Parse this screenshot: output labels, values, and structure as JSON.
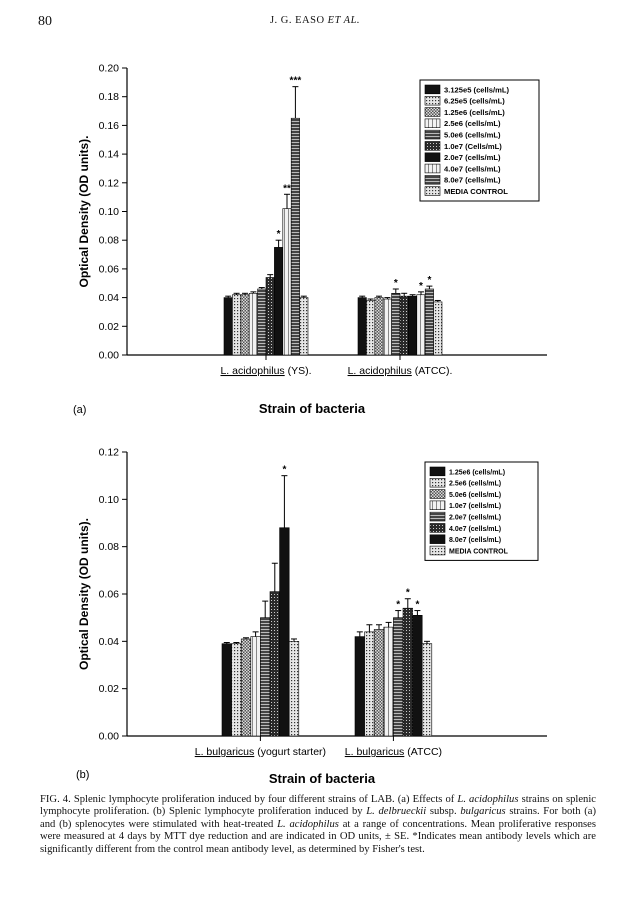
{
  "header": {
    "page_number": "80",
    "authors": "J. G. EASO ",
    "authors_etal": "ET AL."
  },
  "chart_data": [
    {
      "panel": "(a)",
      "type": "bar",
      "ylabel": "Optical Density (OD units).",
      "xlabel": "Strain of bacteria",
      "ylim": [
        0,
        0.2
      ],
      "yticks": [
        "0.00",
        "0.02",
        "0.04",
        "0.06",
        "0.08",
        "0.10",
        "0.12",
        "0.14",
        "0.16",
        "0.18",
        "0.20"
      ],
      "categories": [
        "L. acidophilus (YS).",
        "L. acidophilus (ATCC)."
      ],
      "category_parts": [
        {
          "name": "L. acidophilus",
          "suffix": " (YS)."
        },
        {
          "name": "L. acidophilus",
          "suffix": " (ATCC)."
        }
      ],
      "legend_position": "top-right",
      "series": [
        {
          "name": "3.125e5 (cells/mL)",
          "values": [
            0.04,
            0.04
          ],
          "errors": [
            0.001,
            0.001
          ],
          "sig": [
            "",
            ""
          ],
          "fill": "#111111"
        },
        {
          "name": "6.25e5 (cells/mL)",
          "values": [
            0.042,
            0.038
          ],
          "errors": [
            0.001,
            0.001
          ],
          "sig": [
            "",
            ""
          ],
          "fill": "pat-dots"
        },
        {
          "name": "1.25e6 (cells/mL)",
          "values": [
            0.042,
            0.04
          ],
          "errors": [
            0.001,
            0.001
          ],
          "sig": [
            "",
            ""
          ],
          "fill": "pat-checker"
        },
        {
          "name": "2.5e6 (cells/mL)",
          "values": [
            0.043,
            0.039
          ],
          "errors": [
            0.001,
            0.001
          ],
          "sig": [
            "",
            ""
          ],
          "fill": "pat-light"
        },
        {
          "name": "5.0e6 (cells/mL)",
          "values": [
            0.046,
            0.043
          ],
          "errors": [
            0.001,
            0.003
          ],
          "sig": [
            "",
            "*"
          ],
          "fill": "pat-hatch"
        },
        {
          "name": "1.0e7 (Cells/mL)",
          "values": [
            0.054,
            0.041
          ],
          "errors": [
            0.002,
            0.002
          ],
          "sig": [
            "",
            ""
          ],
          "fill": "pat-cross"
        },
        {
          "name": "2.0e7 (cells/mL)",
          "values": [
            0.075,
            0.041
          ],
          "errors": [
            0.005,
            0.001
          ],
          "sig": [
            "*",
            ""
          ],
          "fill": "#111111"
        },
        {
          "name": "4.0e7 (cells/mL)",
          "values": [
            0.102,
            0.042
          ],
          "errors": [
            0.01,
            0.002
          ],
          "sig": [
            "**",
            "*"
          ],
          "fill": "pat-light"
        },
        {
          "name": "8.0e7 (cells/mL)",
          "values": [
            0.165,
            0.046
          ],
          "errors": [
            0.022,
            0.002
          ],
          "sig": [
            "***",
            "*"
          ],
          "fill": "pat-hatch"
        },
        {
          "name": "MEDIA CONTROL",
          "values": [
            0.04,
            0.037
          ],
          "errors": [
            0.001,
            0.001
          ],
          "sig": [
            "",
            ""
          ],
          "fill": "pat-dots"
        }
      ]
    },
    {
      "panel": "(b)",
      "type": "bar",
      "ylabel": "Optical Density (OD units).",
      "xlabel": "Strain of bacteria",
      "ylim": [
        0,
        0.12
      ],
      "yticks": [
        "0.00",
        "0.02",
        "0.04",
        "0.06",
        "0.08",
        "0.10",
        "0.12"
      ],
      "categories": [
        "L. bulgaricus (yogurt starter)",
        "L. bulgaricus (ATCC)"
      ],
      "category_parts": [
        {
          "name": "L. bulgaricus",
          "suffix": " (yogurt starter)"
        },
        {
          "name": "L. bulgaricus",
          "suffix": " (ATCC)"
        }
      ],
      "legend_position": "top-right",
      "series": [
        {
          "name": "1.25e6 (cells/mL)",
          "values": [
            0.039,
            0.042
          ],
          "errors": [
            0.0005,
            0.002
          ],
          "sig": [
            "",
            ""
          ],
          "fill": "#111111"
        },
        {
          "name": "2.5e6 (cells/mL)",
          "values": [
            0.039,
            0.044
          ],
          "errors": [
            0.0005,
            0.003
          ],
          "sig": [
            "",
            ""
          ],
          "fill": "pat-dots"
        },
        {
          "name": "5.0e6 (cells/mL)",
          "values": [
            0.041,
            0.045
          ],
          "errors": [
            0.0005,
            0.002
          ],
          "sig": [
            "",
            ""
          ],
          "fill": "pat-checker"
        },
        {
          "name": "1.0e7 (cells/mL)",
          "values": [
            0.042,
            0.046
          ],
          "errors": [
            0.002,
            0.002
          ],
          "sig": [
            "",
            ""
          ],
          "fill": "pat-light"
        },
        {
          "name": "2.0e7 (cells/mL)",
          "values": [
            0.05,
            0.05
          ],
          "errors": [
            0.007,
            0.003
          ],
          "sig": [
            "",
            "*"
          ],
          "fill": "pat-hatch"
        },
        {
          "name": "4.0e7 (cells/mL)",
          "values": [
            0.061,
            0.054
          ],
          "errors": [
            0.012,
            0.004
          ],
          "sig": [
            "",
            "*"
          ],
          "fill": "pat-cross"
        },
        {
          "name": "8.0e7 (cells/mL)",
          "values": [
            0.088,
            0.051
          ],
          "errors": [
            0.022,
            0.002
          ],
          "sig": [
            "*",
            "*"
          ],
          "fill": "#111111"
        },
        {
          "name": "MEDIA CONTROL",
          "values": [
            0.04,
            0.039
          ],
          "errors": [
            0.001,
            0.001
          ],
          "sig": [
            "",
            ""
          ],
          "fill": "pat-dots"
        }
      ]
    }
  ],
  "caption": [
    {
      "t": "FIG. 4.",
      "i": false
    },
    {
      "t": " Splenic lymphocyte proliferation induced by four different strains of LAB. (a) Effects of ",
      "i": false
    },
    {
      "t": "L. acidophilus",
      "i": true
    },
    {
      "t": " strains on splenic lymphocyte proliferation. (b) Splenic lymphocyte proliferation induced by ",
      "i": false
    },
    {
      "t": "L. delbrueckii",
      "i": true
    },
    {
      "t": " subsp. ",
      "i": false
    },
    {
      "t": "bulgaricus",
      "i": true
    },
    {
      "t": " strains. For both (a) and (b) splenocytes were stimulated with heat-treated ",
      "i": false
    },
    {
      "t": "L. acidophilus",
      "i": true
    },
    {
      "t": " at a range of concentrations. Mean proliferative responses were measured at 4 days by MTT dye reduction and are indicated in OD units, ± SE. *Indicates mean antibody levels which are significantly different from the control mean antibody level, as determined by Fisher's test.",
      "i": false
    }
  ]
}
